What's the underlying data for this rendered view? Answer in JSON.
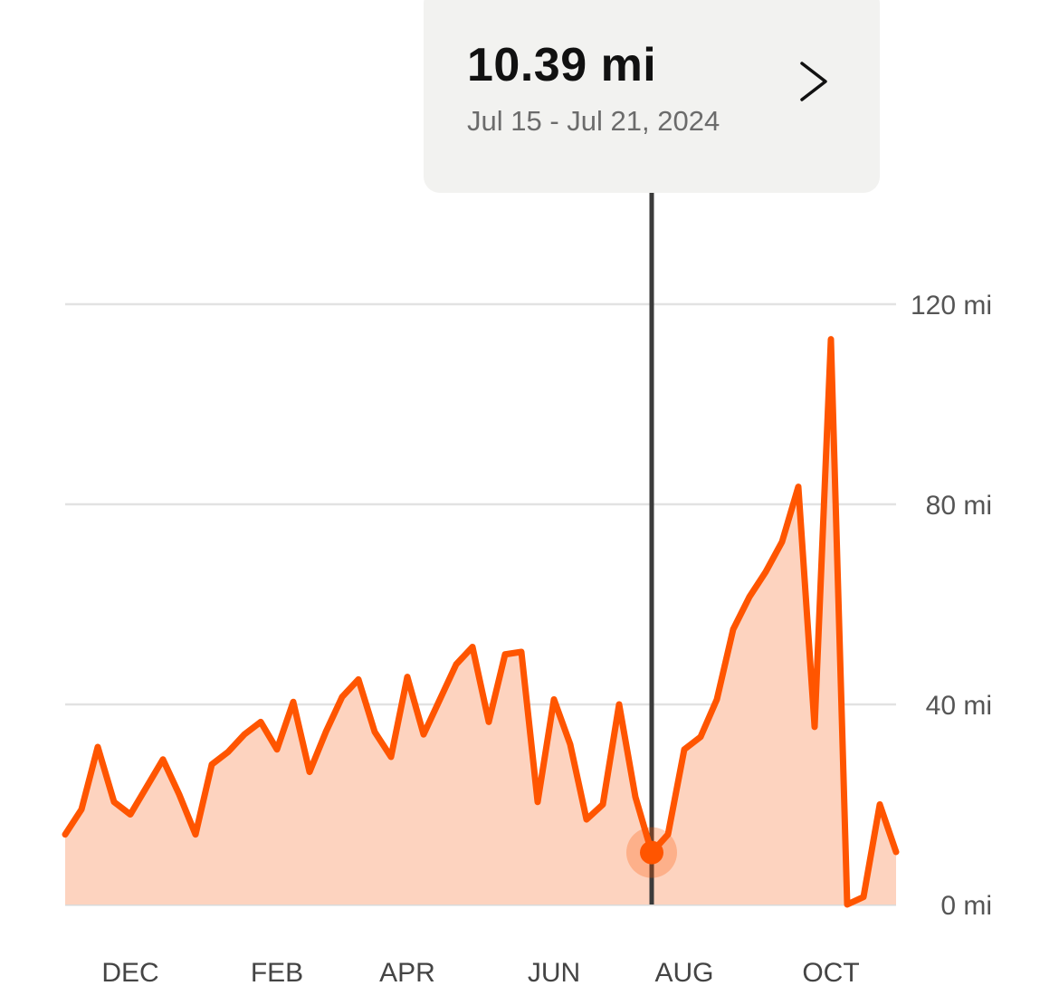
{
  "tooltip": {
    "value": "10.39 mi",
    "date_range": "Jul 15 - Jul 21, 2024",
    "chevron_icon": "chevron-right-icon"
  },
  "colors": {
    "line": "#ff5500",
    "area": "#fdd3bf",
    "grid": "#e2e2e2",
    "cursor": "#3b3b3b",
    "tooltip_bg": "#f2f2f0"
  },
  "chart_data": {
    "type": "area",
    "unit": "mi",
    "ylim": [
      0,
      120
    ],
    "y_ticks": [
      {
        "value": 0,
        "label": "0 mi"
      },
      {
        "value": 40,
        "label": "40 mi"
      },
      {
        "value": 80,
        "label": "80 mi"
      },
      {
        "value": 120,
        "label": "120 mi"
      }
    ],
    "x_ticks": [
      {
        "index": 4,
        "label": "DEC"
      },
      {
        "index": 13,
        "label": "FEB"
      },
      {
        "index": 21,
        "label": "APR"
      },
      {
        "index": 30,
        "label": "JUN"
      },
      {
        "index": 38,
        "label": "AUG"
      },
      {
        "index": 47,
        "label": "OCT"
      }
    ],
    "grid": true,
    "selected_index": 36,
    "series": [
      {
        "values": [
          14,
          19,
          31.5,
          20.5,
          18,
          23.5,
          29,
          22,
          14,
          28,
          30.5,
          34,
          36.5,
          31,
          40.5,
          26.5,
          34.5,
          41.5,
          45,
          34.5,
          29.5,
          45.5,
          34,
          41,
          48,
          51.5,
          36.5,
          50,
          50.5,
          20.5,
          41,
          32,
          17,
          20,
          40,
          21.5,
          10.39,
          14,
          31,
          33.5,
          41,
          55,
          61.5,
          66.5,
          72.5,
          83.5,
          35.5,
          113,
          0,
          1.5,
          20,
          10.5
        ]
      }
    ]
  }
}
